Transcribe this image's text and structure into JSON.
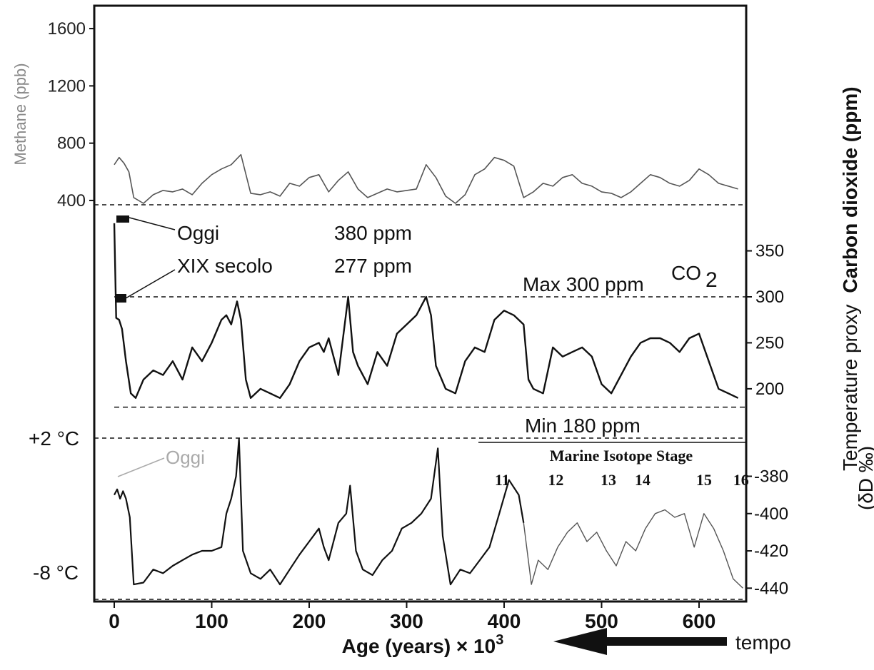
{
  "chart_data": {
    "type": "line",
    "x_axis": {
      "label": "Age (years) × 10",
      "label_superscript": "3",
      "ticks": [
        "0",
        "100",
        "200",
        "300",
        "400",
        "500",
        "600"
      ],
      "range": [
        -10,
        650
      ]
    },
    "methane": {
      "axis_label": "Methane (ppb)",
      "ticks": [
        "1600",
        "1200",
        "800",
        "400"
      ],
      "range": [
        330,
        1700
      ],
      "x": [
        0,
        5,
        10,
        15,
        20,
        30,
        40,
        50,
        60,
        70,
        80,
        90,
        100,
        110,
        120,
        130,
        140,
        150,
        160,
        170,
        180,
        190,
        200,
        210,
        220,
        230,
        240,
        250,
        260,
        270,
        280,
        290,
        300,
        310,
        320,
        330,
        340,
        350,
        360,
        370,
        380,
        390,
        400,
        410,
        420,
        430,
        440,
        450,
        460,
        470,
        480,
        490,
        500,
        510,
        520,
        530,
        540,
        550,
        560,
        570,
        580,
        590,
        600,
        610,
        620,
        630,
        640
      ],
      "values": [
        650,
        700,
        660,
        600,
        420,
        380,
        440,
        470,
        460,
        480,
        440,
        520,
        580,
        620,
        650,
        720,
        450,
        440,
        460,
        430,
        520,
        500,
        560,
        580,
        460,
        540,
        600,
        480,
        420,
        450,
        480,
        460,
        470,
        480,
        650,
        560,
        430,
        380,
        440,
        580,
        620,
        700,
        680,
        640,
        420,
        460,
        520,
        500,
        560,
        580,
        520,
        500,
        460,
        450,
        420,
        460,
        520,
        580,
        560,
        520,
        500,
        540,
        620,
        580,
        520,
        500,
        480
      ]
    },
    "co2": {
      "axis_label": "Carbon dioxide (ppm)",
      "symbol": "CO",
      "symbol_sub": "2",
      "ticks": [
        "350",
        "300",
        "250",
        "200"
      ],
      "range": [
        165,
        390
      ],
      "x": [
        0,
        2,
        5,
        8,
        12,
        17,
        22,
        30,
        40,
        50,
        60,
        70,
        80,
        90,
        100,
        110,
        115,
        120,
        126,
        130,
        135,
        140,
        150,
        160,
        170,
        180,
        190,
        200,
        210,
        215,
        220,
        230,
        240,
        245,
        250,
        260,
        270,
        280,
        290,
        300,
        310,
        320,
        325,
        330,
        340,
        350,
        360,
        370,
        380,
        390,
        400,
        410,
        420,
        425,
        430,
        440,
        450,
        460,
        470,
        480,
        490,
        500,
        510,
        520,
        530,
        540,
        550,
        560,
        570,
        580,
        590,
        600,
        610,
        620,
        630,
        640
      ],
      "values": [
        380,
        277,
        275,
        265,
        230,
        195,
        190,
        210,
        220,
        215,
        230,
        210,
        245,
        230,
        250,
        275,
        280,
        270,
        295,
        275,
        210,
        190,
        200,
        195,
        190,
        205,
        230,
        245,
        250,
        240,
        255,
        215,
        300,
        240,
        225,
        205,
        240,
        225,
        260,
        270,
        280,
        300,
        280,
        225,
        200,
        195,
        230,
        245,
        240,
        275,
        285,
        280,
        270,
        210,
        200,
        195,
        245,
        235,
        240,
        245,
        235,
        205,
        195,
        215,
        235,
        250,
        255,
        255,
        250,
        240,
        255,
        260,
        230,
        200,
        195,
        190
      ],
      "annotations": {
        "today_label": "Oggi",
        "today_value": "380 ppm",
        "xix_label": "XIX secolo",
        "xix_value": "277 ppm",
        "max_label": "Max 300 ppm",
        "min_label": "Min 180 ppm",
        "max_value": 300,
        "min_value": 180
      }
    },
    "temperature": {
      "axis_label_line1": "Temperature proxy",
      "axis_label_line2": "(δD ‰)",
      "ticks": [
        "-380",
        "-400",
        "-420",
        "-440"
      ],
      "range": [
        -446,
        -358
      ],
      "x": [
        0,
        3,
        6,
        9,
        12,
        16,
        20,
        30,
        40,
        50,
        60,
        70,
        80,
        90,
        100,
        110,
        115,
        120,
        125,
        128,
        132,
        140,
        150,
        160,
        170,
        180,
        190,
        200,
        210,
        215,
        220,
        230,
        238,
        242,
        248,
        255,
        265,
        275,
        285,
        295,
        305,
        315,
        325,
        332,
        337,
        345,
        355,
        365,
        375,
        385,
        395,
        405,
        415,
        420,
        428,
        435,
        445,
        455,
        465,
        475,
        485,
        495,
        505,
        515,
        525,
        535,
        545,
        555,
        565,
        575,
        585,
        595,
        605,
        615,
        625,
        635,
        645
      ],
      "values": [
        -390,
        -387,
        -392,
        -388,
        -392,
        -402,
        -438,
        -437,
        -430,
        -432,
        -428,
        -425,
        -422,
        -420,
        -420,
        -418,
        -400,
        -392,
        -380,
        -360,
        -420,
        -432,
        -435,
        -430,
        -438,
        -430,
        -422,
        -415,
        -408,
        -418,
        -425,
        -405,
        -400,
        -385,
        -420,
        -430,
        -433,
        -425,
        -420,
        -408,
        -405,
        -400,
        -392,
        -365,
        -412,
        -438,
        -430,
        -432,
        -425,
        -418,
        -400,
        -382,
        -390,
        -405,
        -438,
        -425,
        -430,
        -418,
        -410,
        -405,
        -415,
        -410,
        -420,
        -428,
        -415,
        -420,
        -408,
        -400,
        -398,
        -402,
        -400,
        -418,
        -400,
        -408,
        -420,
        -435,
        -440
      ],
      "annotations": {
        "plus2_label": "+2 °C",
        "minus8_label": "-8 °C",
        "today_label": "Oggi",
        "mis_title": "Marine Isotope Stage",
        "mis_stages": [
          "11",
          "12",
          "13",
          "14",
          "15",
          "16"
        ]
      }
    },
    "time_arrow_label": "tempo"
  }
}
